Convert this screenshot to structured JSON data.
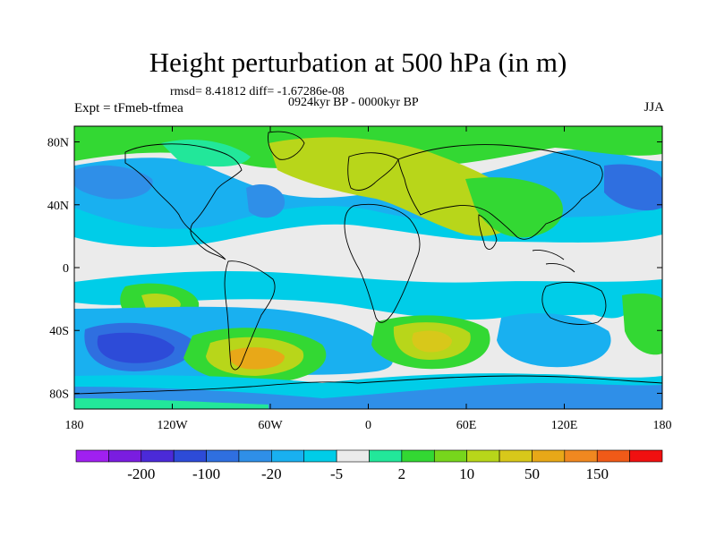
{
  "header": {
    "title": "Height perturbation at 500 hPa (in m)",
    "stats": "rmsd= 8.41812 diff= -1.67286e-08",
    "period": "0924kyr BP - 0000kyr BP",
    "experiment": "Expt = tFmeb-tfmea",
    "season": "JJA"
  },
  "axes": {
    "lat_labels": [
      "80N",
      "40N",
      "0",
      "40S",
      "80S"
    ],
    "lat_values": [
      80,
      40,
      0,
      -40,
      -80
    ],
    "lon_labels": [
      "180",
      "120W",
      "60W",
      "0",
      "60E",
      "120E",
      "180"
    ],
    "lon_values": [
      -180,
      -120,
      -60,
      0,
      60,
      120,
      180
    ]
  },
  "colorbar": {
    "colors": [
      "#a020f0",
      "#7a1de0",
      "#4b2ad8",
      "#2d4bd8",
      "#2f6fe0",
      "#2f8fe8",
      "#19b0f0",
      "#00cde8",
      "#ebebeb",
      "#22e79a",
      "#33d833",
      "#77d61c",
      "#b8d61a",
      "#d8c81a",
      "#e8a818",
      "#f08820",
      "#f05a18",
      "#f01010"
    ],
    "labels": [
      "-200",
      "-100",
      "-20",
      "-5",
      "2",
      "10",
      "50",
      "150"
    ],
    "label_after_index": [
      1,
      3,
      5,
      7,
      9,
      11,
      13,
      15
    ]
  },
  "map_colors": {
    "neutral": "#ebebeb",
    "light_blue": "#00cde8",
    "mid_blue": "#19b0f0",
    "blue": "#2f8fe8",
    "dark_blue": "#2f6fe0",
    "deep_blue": "#2d4bd8",
    "teal": "#22e79a",
    "green": "#33d833",
    "yellow_green": "#b8d61a",
    "orange": "#e8a818",
    "coastline": "#000000"
  }
}
